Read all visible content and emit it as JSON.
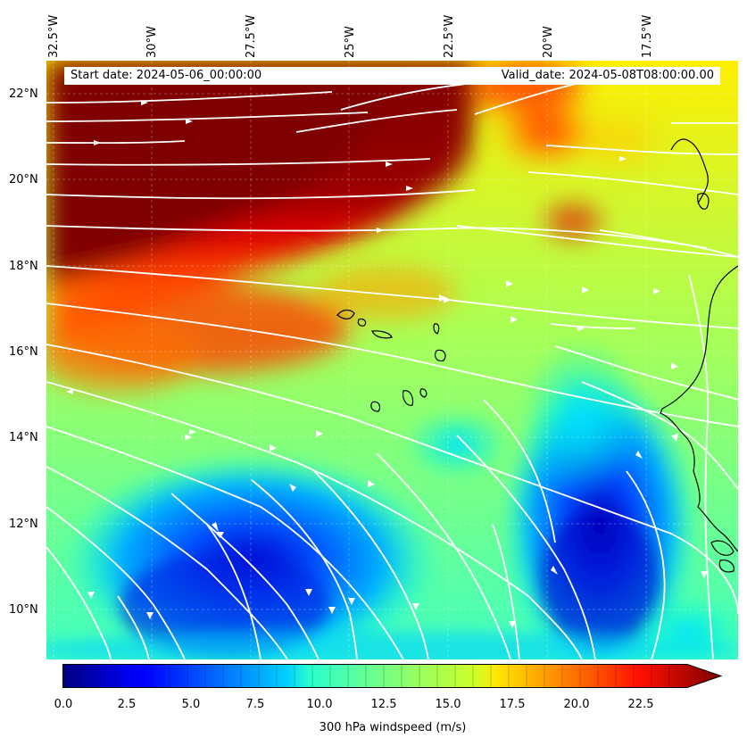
{
  "header": {
    "start_date": "Start date: 2024-05-06_00:00:00",
    "valid_date": "Valid_date: 2024-05-08T08:00:00.00"
  },
  "axes": {
    "lon_labels": [
      "32.5°W",
      "30°W",
      "27.5°W",
      "25°W",
      "22.5°W",
      "20°W",
      "17.5°W"
    ],
    "lat_labels": [
      "22°N",
      "20°N",
      "18°N",
      "16°N",
      "14°N",
      "12°N",
      "10°N"
    ]
  },
  "colorbar": {
    "label": "300 hPa windspeed (m/s)",
    "ticks": [
      "0.0",
      "2.5",
      "5.0",
      "7.5",
      "10.0",
      "12.5",
      "15.0",
      "17.5",
      "20.0",
      "22.5"
    ],
    "extend": "max",
    "colormap": "jet"
  },
  "colors": {
    "low": "#00007f",
    "mid": "#7fff7f",
    "high": "#7f0000",
    "streamlines": "#ffffff",
    "coastline": "#000000"
  }
}
